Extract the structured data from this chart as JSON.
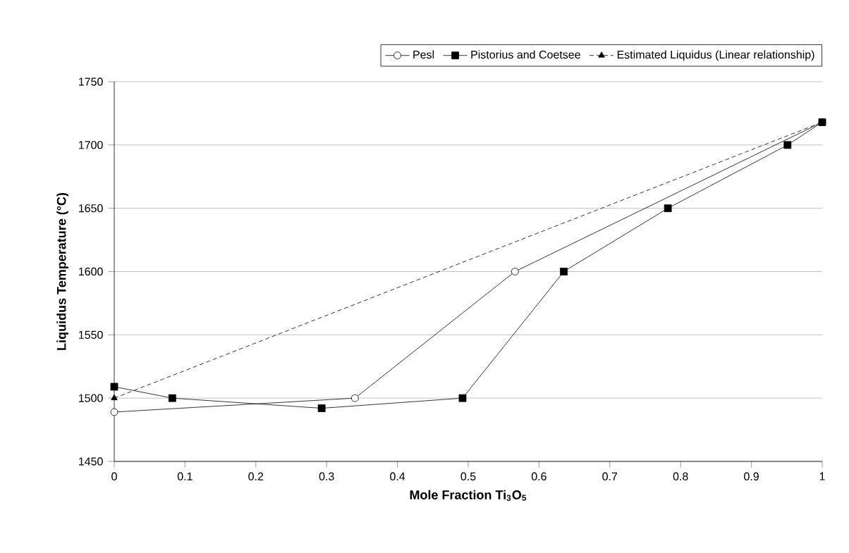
{
  "chart_data": {
    "type": "line",
    "xlabel": "Mole Fraction Ti$_{3}$O$_{5}$",
    "ylabel": "Liquidus Temperature (°C)",
    "xlim": [
      0,
      1
    ],
    "ylim": [
      1450,
      1750
    ],
    "xticks": [
      0,
      0.1,
      0.2,
      0.3,
      0.4,
      0.5,
      0.6,
      0.7,
      0.8,
      0.9,
      1
    ],
    "yticks": [
      1450,
      1500,
      1550,
      1600,
      1650,
      1700,
      1750
    ],
    "grid": "y",
    "legend": "top",
    "series": [
      {
        "name": "Pesl",
        "color": "#000000",
        "marker": "circle",
        "line_style": "solid",
        "x": [
          0,
          0.34,
          0.566,
          1
        ],
        "values": [
          1489,
          1500,
          1600,
          1718
        ]
      },
      {
        "name": "Pistorius and Coetsee",
        "color": "#000000",
        "marker": "square",
        "line_style": "solid",
        "x": [
          0,
          0.082,
          0.293,
          0.492,
          0.635,
          0.782,
          0.951,
          1
        ],
        "values": [
          1509,
          1500,
          1492,
          1500,
          1600,
          1650,
          1700,
          1718
        ]
      },
      {
        "name": "Estimated Liquidus (Linear relationship)",
        "color": "#000000",
        "marker": "triangle",
        "line_style": "dashed",
        "x": [
          0,
          1
        ],
        "values": [
          1500,
          1718
        ]
      }
    ]
  }
}
